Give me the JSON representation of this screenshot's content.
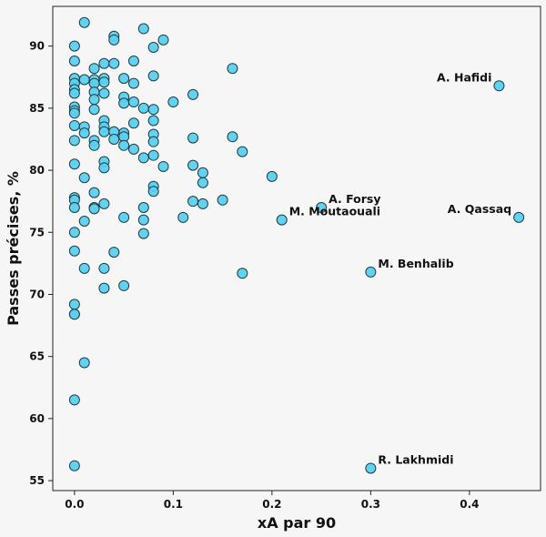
{
  "colors": {
    "background": "#f6f6f6",
    "point_fill": "#5bd0ef",
    "point_stroke": "#1e3d44"
  },
  "chart_data": {
    "type": "scatter",
    "title": "",
    "xlabel": "xA par 90",
    "ylabel": "Passes précises, %",
    "xlim": [
      -0.022,
      0.472
    ],
    "ylim": [
      54.2,
      93.2
    ],
    "grid": false,
    "x_ticks": [
      "0.0",
      "0.1",
      "0.2",
      "0.3",
      "0.4"
    ],
    "y_ticks": [
      "55",
      "60",
      "65",
      "70",
      "75",
      "80",
      "85",
      "90"
    ],
    "points": [
      {
        "x": 0.0,
        "y": 90.0
      },
      {
        "x": 0.0,
        "y": 88.8
      },
      {
        "x": 0.0,
        "y": 87.4
      },
      {
        "x": 0.0,
        "y": 87.0
      },
      {
        "x": 0.0,
        "y": 86.5
      },
      {
        "x": 0.0,
        "y": 86.2
      },
      {
        "x": 0.0,
        "y": 85.1
      },
      {
        "x": 0.0,
        "y": 84.8
      },
      {
        "x": 0.0,
        "y": 84.6
      },
      {
        "x": 0.0,
        "y": 83.6
      },
      {
        "x": 0.0,
        "y": 82.4
      },
      {
        "x": 0.0,
        "y": 80.5
      },
      {
        "x": 0.0,
        "y": 77.8
      },
      {
        "x": 0.0,
        "y": 77.6
      },
      {
        "x": 0.0,
        "y": 77.0
      },
      {
        "x": 0.0,
        "y": 75.0
      },
      {
        "x": 0.0,
        "y": 73.5
      },
      {
        "x": 0.0,
        "y": 69.2
      },
      {
        "x": 0.0,
        "y": 68.4
      },
      {
        "x": 0.0,
        "y": 68.4
      },
      {
        "x": 0.0,
        "y": 61.5
      },
      {
        "x": 0.0,
        "y": 56.2
      },
      {
        "x": 0.01,
        "y": 91.9
      },
      {
        "x": 0.01,
        "y": 87.3
      },
      {
        "x": 0.01,
        "y": 83.5
      },
      {
        "x": 0.01,
        "y": 83.0
      },
      {
        "x": 0.01,
        "y": 79.4
      },
      {
        "x": 0.01,
        "y": 75.9
      },
      {
        "x": 0.01,
        "y": 72.1
      },
      {
        "x": 0.01,
        "y": 64.5
      },
      {
        "x": 0.02,
        "y": 88.2
      },
      {
        "x": 0.02,
        "y": 87.3
      },
      {
        "x": 0.02,
        "y": 87.0
      },
      {
        "x": 0.02,
        "y": 86.3
      },
      {
        "x": 0.02,
        "y": 85.7
      },
      {
        "x": 0.02,
        "y": 84.9
      },
      {
        "x": 0.02,
        "y": 82.4
      },
      {
        "x": 0.02,
        "y": 82.0
      },
      {
        "x": 0.02,
        "y": 78.2
      },
      {
        "x": 0.02,
        "y": 77.0
      },
      {
        "x": 0.02,
        "y": 76.9
      },
      {
        "x": 0.03,
        "y": 88.6
      },
      {
        "x": 0.03,
        "y": 87.4
      },
      {
        "x": 0.03,
        "y": 87.1
      },
      {
        "x": 0.03,
        "y": 86.2
      },
      {
        "x": 0.03,
        "y": 84.0
      },
      {
        "x": 0.03,
        "y": 83.5
      },
      {
        "x": 0.03,
        "y": 83.1
      },
      {
        "x": 0.03,
        "y": 80.7
      },
      {
        "x": 0.03,
        "y": 80.2
      },
      {
        "x": 0.03,
        "y": 77.3
      },
      {
        "x": 0.03,
        "y": 72.1
      },
      {
        "x": 0.03,
        "y": 70.5
      },
      {
        "x": 0.04,
        "y": 90.8
      },
      {
        "x": 0.04,
        "y": 90.5
      },
      {
        "x": 0.04,
        "y": 88.6
      },
      {
        "x": 0.04,
        "y": 83.1
      },
      {
        "x": 0.04,
        "y": 82.5
      },
      {
        "x": 0.04,
        "y": 73.4
      },
      {
        "x": 0.05,
        "y": 87.4
      },
      {
        "x": 0.05,
        "y": 85.9
      },
      {
        "x": 0.05,
        "y": 85.4
      },
      {
        "x": 0.05,
        "y": 83.0
      },
      {
        "x": 0.05,
        "y": 82.7
      },
      {
        "x": 0.05,
        "y": 82.0
      },
      {
        "x": 0.05,
        "y": 76.2
      },
      {
        "x": 0.05,
        "y": 70.7
      },
      {
        "x": 0.06,
        "y": 88.8
      },
      {
        "x": 0.06,
        "y": 87.0
      },
      {
        "x": 0.06,
        "y": 85.5
      },
      {
        "x": 0.06,
        "y": 83.8
      },
      {
        "x": 0.06,
        "y": 81.7
      },
      {
        "x": 0.07,
        "y": 91.4
      },
      {
        "x": 0.07,
        "y": 85.0
      },
      {
        "x": 0.07,
        "y": 81.0
      },
      {
        "x": 0.07,
        "y": 77.0
      },
      {
        "x": 0.07,
        "y": 76.0
      },
      {
        "x": 0.07,
        "y": 74.9
      },
      {
        "x": 0.08,
        "y": 89.9
      },
      {
        "x": 0.08,
        "y": 87.6
      },
      {
        "x": 0.08,
        "y": 84.9
      },
      {
        "x": 0.08,
        "y": 84.0
      },
      {
        "x": 0.08,
        "y": 82.9
      },
      {
        "x": 0.08,
        "y": 82.3
      },
      {
        "x": 0.08,
        "y": 81.2
      },
      {
        "x": 0.08,
        "y": 78.7
      },
      {
        "x": 0.08,
        "y": 78.3
      },
      {
        "x": 0.09,
        "y": 90.5
      },
      {
        "x": 0.09,
        "y": 80.3
      },
      {
        "x": 0.1,
        "y": 85.5
      },
      {
        "x": 0.11,
        "y": 76.2
      },
      {
        "x": 0.12,
        "y": 86.1
      },
      {
        "x": 0.12,
        "y": 82.6
      },
      {
        "x": 0.12,
        "y": 80.4
      },
      {
        "x": 0.12,
        "y": 77.5
      },
      {
        "x": 0.13,
        "y": 79.8
      },
      {
        "x": 0.13,
        "y": 79.0
      },
      {
        "x": 0.13,
        "y": 77.3
      },
      {
        "x": 0.15,
        "y": 77.6
      },
      {
        "x": 0.16,
        "y": 88.2
      },
      {
        "x": 0.16,
        "y": 82.7
      },
      {
        "x": 0.17,
        "y": 81.5
      },
      {
        "x": 0.17,
        "y": 71.7
      },
      {
        "x": 0.2,
        "y": 79.5
      },
      {
        "x": 0.21,
        "y": 76.0,
        "label": "M. Moutaouali"
      },
      {
        "x": 0.25,
        "y": 77.0,
        "label": "A. Forsy"
      },
      {
        "x": 0.3,
        "y": 71.8,
        "label": "M. Benhalib"
      },
      {
        "x": 0.3,
        "y": 56.0,
        "label": "R. Lakhmidi"
      },
      {
        "x": 0.43,
        "y": 86.8,
        "label": "A. Hafidi"
      },
      {
        "x": 0.45,
        "y": 76.2,
        "label": "A. Qassaq"
      }
    ]
  }
}
